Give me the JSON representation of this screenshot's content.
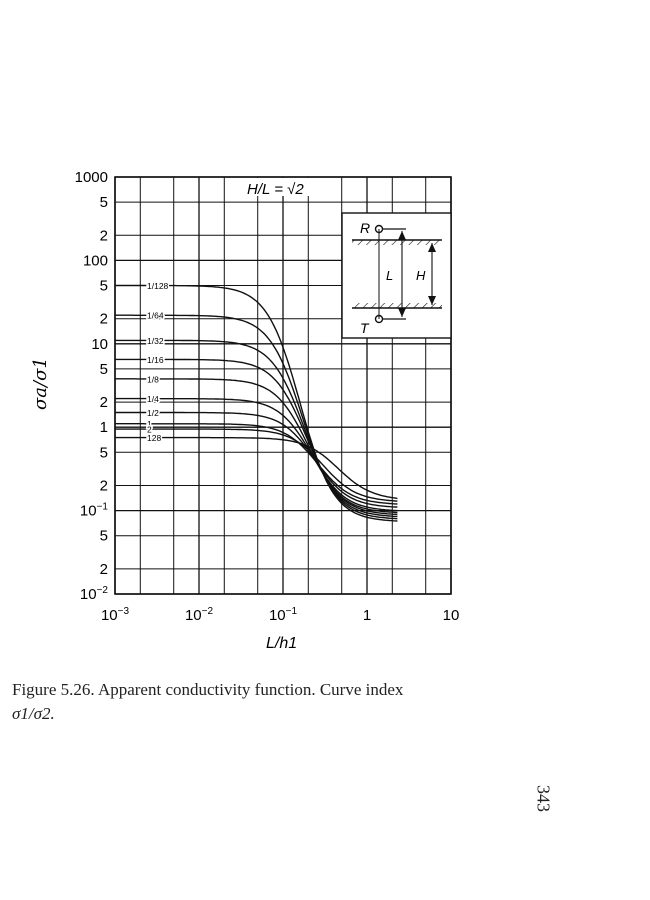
{
  "chart_data": {
    "type": "line",
    "title": "H/L = √2",
    "xlabel": "L/h1",
    "ylabel": "σa/σ1",
    "xscale": "log",
    "yscale": "log",
    "xlim": [
      0.001,
      10
    ],
    "ylim": [
      0.01,
      1000
    ],
    "grid": true,
    "x_ticks": [
      {
        "value": 0.001,
        "label": "10",
        "exp": "−3"
      },
      {
        "value": 0.01,
        "label": "10",
        "exp": "−2"
      },
      {
        "value": 0.1,
        "label": "10",
        "exp": "−1"
      },
      {
        "value": 1,
        "label": "1",
        "exp": ""
      },
      {
        "value": 10,
        "label": "10",
        "exp": ""
      }
    ],
    "y_ticks": [
      {
        "value": 1000,
        "label": "1000",
        "exp": ""
      },
      {
        "value": 500,
        "label": "5",
        "exp": ""
      },
      {
        "value": 200,
        "label": "2",
        "exp": ""
      },
      {
        "value": 100,
        "label": "100",
        "exp": ""
      },
      {
        "value": 50,
        "label": "5",
        "exp": ""
      },
      {
        "value": 20,
        "label": "2",
        "exp": ""
      },
      {
        "value": 10,
        "label": "10",
        "exp": ""
      },
      {
        "value": 5,
        "label": "5",
        "exp": ""
      },
      {
        "value": 2,
        "label": "2",
        "exp": ""
      },
      {
        "value": 1,
        "label": "1",
        "exp": ""
      },
      {
        "value": 0.5,
        "label": "5",
        "exp": ""
      },
      {
        "value": 0.2,
        "label": "2",
        "exp": ""
      },
      {
        "value": 0.1,
        "label": "10",
        "exp": "−1"
      },
      {
        "value": 0.05,
        "label": "5",
        "exp": ""
      },
      {
        "value": 0.02,
        "label": "2",
        "exp": ""
      },
      {
        "value": 0.01,
        "label": "10",
        "exp": "−2"
      }
    ],
    "series": [
      {
        "name": "1/128",
        "y_start": 50,
        "y_end": 0.075,
        "x_mid": 0.16
      },
      {
        "name": "1/64",
        "y_start": 22,
        "y_end": 0.08,
        "x_mid": 0.17
      },
      {
        "name": "1/32",
        "y_start": 11,
        "y_end": 0.085,
        "x_mid": 0.18
      },
      {
        "name": "1/16",
        "y_start": 6.5,
        "y_end": 0.09,
        "x_mid": 0.19
      },
      {
        "name": "1/8",
        "y_start": 3.8,
        "y_end": 0.095,
        "x_mid": 0.2
      },
      {
        "name": "1/4",
        "y_start": 2.2,
        "y_end": 0.1,
        "x_mid": 0.22
      },
      {
        "name": "1/2",
        "y_start": 1.5,
        "y_end": 0.11,
        "x_mid": 0.24
      },
      {
        "name": "1",
        "y_start": 1.1,
        "y_end": 0.12,
        "x_mid": 0.26
      },
      {
        "name": "2",
        "y_start": 0.95,
        "y_end": 0.13,
        "x_mid": 0.3
      },
      {
        "name": "128",
        "y_start": 0.75,
        "y_end": 0.14,
        "x_mid": 0.45
      }
    ],
    "inset": {
      "labels": {
        "top": "R",
        "bottom": "T",
        "left": "L",
        "right": "H"
      }
    }
  },
  "caption": {
    "text": "Figure 5.26. Apparent conductivity function. Curve index",
    "math": "σ1/σ2."
  },
  "page_number": "343"
}
